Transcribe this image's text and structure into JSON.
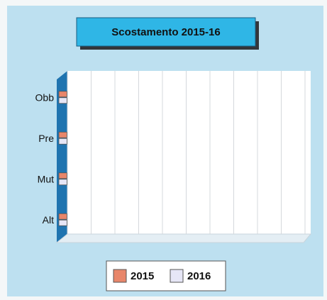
{
  "chart_data": {
    "type": "bar",
    "orientation": "horizontal",
    "title": "Scostamento 2015-16",
    "categories": [
      "Obb",
      "Pre",
      "Mut",
      "Alt"
    ],
    "series": [
      {
        "name": "2015",
        "color": "#e8866a",
        "values": [
          0.1,
          0.1,
          0.1,
          0.1
        ]
      },
      {
        "name": "2016",
        "color": "#e6e6f6",
        "values": [
          0.1,
          0.1,
          0.1,
          0.1
        ]
      }
    ],
    "xlim": [
      0,
      10
    ],
    "xticks": [
      0,
      1,
      2,
      3,
      4,
      5,
      6,
      7,
      8,
      9,
      10
    ],
    "grid": true
  }
}
